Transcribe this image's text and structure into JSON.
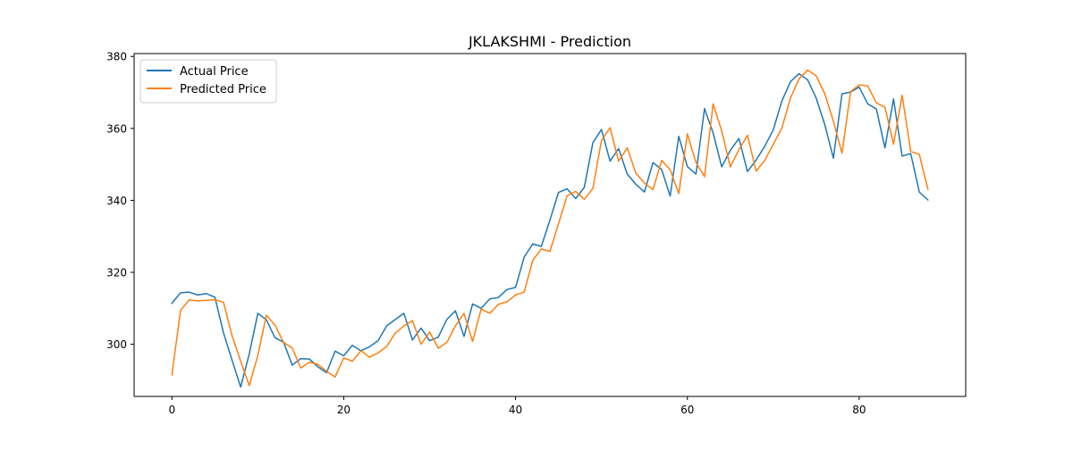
{
  "chart_data": {
    "type": "line",
    "title": "JKLAKSHMI - Prediction",
    "xlabel": "",
    "ylabel": "",
    "xlim": [
      -4.4,
      92.4
    ],
    "ylim": [
      285.5,
      380.8
    ],
    "xticks": [
      0,
      20,
      40,
      60,
      80
    ],
    "yticks": [
      300,
      320,
      340,
      360,
      380
    ],
    "grid": false,
    "legend": {
      "placement": "upper-left"
    },
    "x": [
      0,
      1,
      2,
      3,
      4,
      5,
      6,
      7,
      8,
      9,
      10,
      11,
      12,
      13,
      14,
      15,
      16,
      17,
      18,
      19,
      20,
      21,
      22,
      23,
      24,
      25,
      26,
      27,
      28,
      29,
      30,
      31,
      32,
      33,
      34,
      35,
      36,
      37,
      38,
      39,
      40,
      41,
      42,
      43,
      44,
      45,
      46,
      47,
      48,
      49,
      50,
      51,
      52,
      53,
      54,
      55,
      56,
      57,
      58,
      59,
      60,
      61,
      62,
      63,
      64,
      65,
      66,
      67,
      68,
      69,
      70,
      71,
      72,
      73,
      74,
      75,
      76,
      77,
      78,
      79,
      80,
      81,
      82,
      83,
      84,
      85,
      86,
      87,
      88
    ],
    "series": [
      {
        "name": "Actual Price",
        "color": "#1f77b4",
        "values": [
          311.4,
          314.3,
          314.5,
          313.7,
          314.1,
          313.1,
          303.2,
          295.6,
          288.1,
          297.3,
          308.6,
          306.8,
          301.8,
          300.6,
          294.2,
          296.0,
          295.9,
          293.7,
          292.1,
          298.1,
          296.8,
          299.7,
          298.2,
          299.3,
          301.0,
          305.1,
          306.9,
          308.6,
          301.2,
          304.5,
          301.0,
          302.0,
          306.9,
          309.3,
          302.2,
          311.2,
          310.0,
          312.6,
          313.0,
          315.2,
          315.8,
          324.2,
          327.9,
          327.2,
          334.5,
          342.2,
          343.2,
          340.5,
          343.6,
          356.0,
          359.7,
          350.9,
          354.4,
          347.3,
          344.5,
          342.3,
          350.5,
          348.6,
          341.2,
          357.8,
          349.4,
          347.3,
          365.5,
          358.7,
          349.3,
          353.9,
          357.2,
          348.0,
          351.2,
          355.0,
          359.6,
          367.6,
          373.0,
          375.2,
          373.5,
          368.4,
          361.0,
          351.7,
          369.6,
          370.1,
          371.5,
          366.8,
          365.4,
          354.6,
          368.2,
          352.3,
          353.0,
          342.3,
          340.1
        ]
      },
      {
        "name": "Predicted Price",
        "color": "#ff7f0e",
        "values": [
          291.5,
          309.4,
          312.3,
          312.1,
          312.2,
          312.4,
          311.7,
          302.4,
          295.3,
          288.5,
          296.9,
          308.1,
          305.3,
          300.5,
          299.0,
          293.4,
          295.0,
          294.4,
          292.5,
          290.9,
          296.2,
          295.3,
          298.2,
          296.4,
          297.6,
          299.4,
          303.1,
          305.1,
          306.6,
          300.0,
          303.4,
          298.9,
          300.5,
          305.1,
          308.6,
          300.8,
          309.8,
          308.6,
          311.1,
          311.8,
          313.7,
          314.5,
          323.3,
          326.5,
          325.8,
          333.5,
          341.3,
          342.5,
          340.3,
          343.3,
          356.6,
          360.2,
          350.9,
          354.6,
          347.6,
          344.8,
          343.0,
          351.1,
          348.5,
          341.9,
          358.5,
          350.5,
          346.6,
          366.8,
          359.3,
          349.3,
          354.1,
          358.1,
          348.1,
          351.1,
          355.6,
          360.1,
          368.4,
          373.8,
          376.2,
          374.6,
          369.6,
          362.0,
          353.1,
          370.2,
          372.1,
          371.8,
          367.1,
          365.9,
          355.6,
          369.2,
          353.6,
          352.8,
          343.1
        ]
      }
    ]
  }
}
